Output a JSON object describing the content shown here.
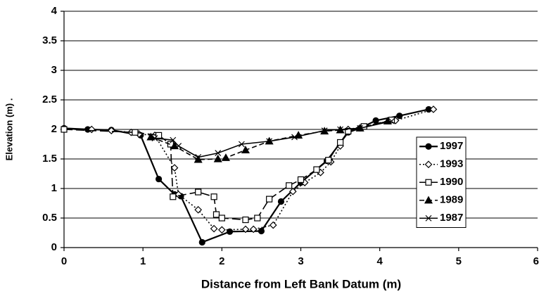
{
  "chart_data": {
    "type": "line",
    "xlabel": "Distance from Left Bank Datum (m)",
    "ylabel": "Elevation (m) .",
    "xlim": [
      0,
      6
    ],
    "xticks": [
      0,
      1,
      2,
      3,
      4,
      5,
      6
    ],
    "ylim": [
      0,
      4
    ],
    "yticks": [
      0,
      0.5,
      1,
      1.5,
      2,
      2.5,
      3,
      3.5,
      4
    ],
    "grid": true,
    "legend": "right",
    "series": [
      {
        "name": "1997",
        "color": "#000000",
        "dash": "solid",
        "marker": "circle",
        "marker_fill": true,
        "x": [
          0,
          0.3,
          0.6,
          0.97,
          1.2,
          1.4,
          1.48,
          1.75,
          2.1,
          2.5,
          2.75,
          3.0,
          3.33,
          3.6,
          3.75,
          3.95,
          4.25,
          4.62
        ],
        "values": [
          2.02,
          2.0,
          1.99,
          1.9,
          1.16,
          0.9,
          0.87,
          0.09,
          0.27,
          0.28,
          0.78,
          1.1,
          1.47,
          1.95,
          2.02,
          2.15,
          2.23,
          2.34
        ]
      },
      {
        "name": "1993",
        "color": "#000000",
        "dash": "dotted",
        "marker": "diamond",
        "marker_fill": false,
        "x": [
          0,
          0.35,
          0.6,
          0.85,
          0.95,
          1.15,
          1.4,
          1.45,
          1.7,
          1.9,
          2.0,
          2.3,
          2.4,
          2.65,
          2.9,
          3.05,
          3.25,
          3.38,
          3.5,
          3.6,
          4.2,
          4.68
        ],
        "values": [
          2.0,
          2.0,
          1.98,
          1.95,
          1.92,
          1.9,
          1.35,
          0.9,
          0.64,
          0.32,
          0.3,
          0.31,
          0.31,
          0.38,
          0.95,
          1.1,
          1.27,
          1.45,
          1.72,
          2.0,
          2.15,
          2.34
        ]
      },
      {
        "name": "1990",
        "color": "#000000",
        "dash": "longdash",
        "marker": "square",
        "marker_fill": false,
        "x": [
          0,
          0.9,
          1.2,
          1.35,
          1.38,
          1.7,
          1.9,
          1.93,
          2.0,
          2.3,
          2.45,
          2.6,
          2.85,
          3.0,
          3.2,
          3.35,
          3.5,
          3.6,
          3.8,
          4.15
        ],
        "values": [
          2.0,
          1.95,
          1.9,
          1.75,
          0.86,
          0.94,
          0.86,
          0.56,
          0.5,
          0.47,
          0.5,
          0.82,
          1.05,
          1.15,
          1.32,
          1.48,
          1.78,
          1.97,
          2.05,
          2.16
        ]
      },
      {
        "name": "1989",
        "color": "#000000",
        "dash": "dash",
        "marker": "triangle",
        "marker_fill": true,
        "x": [
          1.1,
          1.4,
          1.7,
          1.95,
          2.05,
          2.3,
          2.6,
          2.97,
          3.3,
          3.5,
          3.75,
          4.1
        ],
        "values": [
          1.87,
          1.72,
          1.49,
          1.5,
          1.52,
          1.65,
          1.8,
          1.9,
          1.97,
          1.99,
          2.02,
          2.14
        ]
      },
      {
        "name": "1987",
        "color": "#000000",
        "dash": "solid",
        "marker": "x",
        "marker_fill": false,
        "x": [
          1.15,
          1.38,
          1.45,
          1.7,
          1.95,
          2.25,
          2.6,
          2.92,
          3.3,
          3.5,
          3.75,
          4.15
        ],
        "values": [
          1.85,
          1.82,
          1.72,
          1.53,
          1.6,
          1.75,
          1.8,
          1.87,
          1.98,
          2.0,
          2.02,
          2.14
        ]
      }
    ]
  }
}
